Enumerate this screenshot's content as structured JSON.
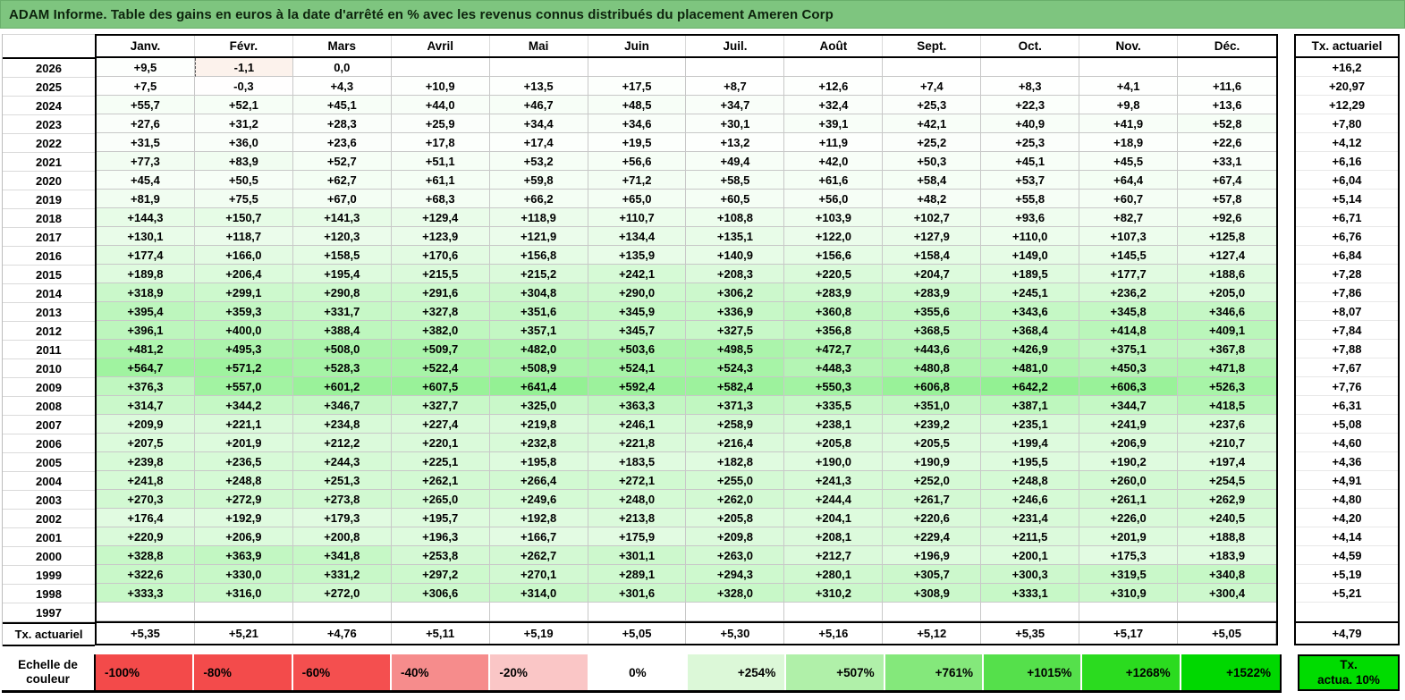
{
  "chart_data": {
    "type": "heatmap",
    "title": "ADAM Informe. Table des gains en euros à la date d'arrêté en % avec les revenus connus distribués du placement Ameren Corp",
    "columns": [
      "Janv.",
      "Févr.",
      "Mars",
      "Avril",
      "Mai",
      "Juin",
      "Juil.",
      "Août",
      "Sept.",
      "Oct.",
      "Nov.",
      "Déc."
    ],
    "right_column_label": "Tx. actuariel",
    "rows": [
      {
        "label": "2026",
        "values": [
          "+9,5",
          "-1,1",
          "0,0",
          "",
          "",
          "",
          "",
          "",
          "",
          "",
          "",
          ""
        ],
        "tx_actuariel": "+16,2"
      },
      {
        "label": "2025",
        "values": [
          "+7,5",
          "-0,3",
          "+4,3",
          "+10,9",
          "+13,5",
          "+17,5",
          "+8,7",
          "+12,6",
          "+7,4",
          "+8,3",
          "+4,1",
          "+11,6"
        ],
        "tx_actuariel": "+20,97"
      },
      {
        "label": "2024",
        "values": [
          "+55,7",
          "+52,1",
          "+45,1",
          "+44,0",
          "+46,7",
          "+48,5",
          "+34,7",
          "+32,4",
          "+25,3",
          "+22,3",
          "+9,8",
          "+13,6"
        ],
        "tx_actuariel": "+12,29"
      },
      {
        "label": "2023",
        "values": [
          "+27,6",
          "+31,2",
          "+28,3",
          "+25,9",
          "+34,4",
          "+34,6",
          "+30,1",
          "+39,1",
          "+42,1",
          "+40,9",
          "+41,9",
          "+52,8"
        ],
        "tx_actuariel": "+7,80"
      },
      {
        "label": "2022",
        "values": [
          "+31,5",
          "+36,0",
          "+23,6",
          "+17,8",
          "+17,4",
          "+19,5",
          "+13,2",
          "+11,9",
          "+25,2",
          "+25,3",
          "+18,9",
          "+22,6"
        ],
        "tx_actuariel": "+4,12"
      },
      {
        "label": "2021",
        "values": [
          "+77,3",
          "+83,9",
          "+52,7",
          "+51,1",
          "+53,2",
          "+56,6",
          "+49,4",
          "+42,0",
          "+50,3",
          "+45,1",
          "+45,5",
          "+33,1"
        ],
        "tx_actuariel": "+6,16"
      },
      {
        "label": "2020",
        "values": [
          "+45,4",
          "+50,5",
          "+62,7",
          "+61,1",
          "+59,8",
          "+71,2",
          "+58,5",
          "+61,6",
          "+58,4",
          "+53,7",
          "+64,4",
          "+67,4"
        ],
        "tx_actuariel": "+6,04"
      },
      {
        "label": "2019",
        "values": [
          "+81,9",
          "+75,5",
          "+67,0",
          "+68,3",
          "+66,2",
          "+65,0",
          "+60,5",
          "+56,0",
          "+48,2",
          "+55,8",
          "+60,7",
          "+57,8"
        ],
        "tx_actuariel": "+5,14"
      },
      {
        "label": "2018",
        "values": [
          "+144,3",
          "+150,7",
          "+141,3",
          "+129,4",
          "+118,9",
          "+110,7",
          "+108,8",
          "+103,9",
          "+102,7",
          "+93,6",
          "+82,7",
          "+92,6"
        ],
        "tx_actuariel": "+6,71"
      },
      {
        "label": "2017",
        "values": [
          "+130,1",
          "+118,7",
          "+120,3",
          "+123,9",
          "+121,9",
          "+134,4",
          "+135,1",
          "+122,0",
          "+127,9",
          "+110,0",
          "+107,3",
          "+125,8"
        ],
        "tx_actuariel": "+6,76"
      },
      {
        "label": "2016",
        "values": [
          "+177,4",
          "+166,0",
          "+158,5",
          "+170,6",
          "+156,8",
          "+135,9",
          "+140,9",
          "+156,6",
          "+158,4",
          "+149,0",
          "+145,5",
          "+127,4"
        ],
        "tx_actuariel": "+6,84"
      },
      {
        "label": "2015",
        "values": [
          "+189,8",
          "+206,4",
          "+195,4",
          "+215,5",
          "+215,2",
          "+242,1",
          "+208,3",
          "+220,5",
          "+204,7",
          "+189,5",
          "+177,7",
          "+188,6"
        ],
        "tx_actuariel": "+7,28"
      },
      {
        "label": "2014",
        "values": [
          "+318,9",
          "+299,1",
          "+290,8",
          "+291,6",
          "+304,8",
          "+290,0",
          "+306,2",
          "+283,9",
          "+283,9",
          "+245,1",
          "+236,2",
          "+205,0"
        ],
        "tx_actuariel": "+7,86"
      },
      {
        "label": "2013",
        "values": [
          "+395,4",
          "+359,3",
          "+331,7",
          "+327,8",
          "+351,6",
          "+345,9",
          "+336,9",
          "+360,8",
          "+355,6",
          "+343,6",
          "+345,8",
          "+346,6"
        ],
        "tx_actuariel": "+8,07"
      },
      {
        "label": "2012",
        "values": [
          "+396,1",
          "+400,0",
          "+388,4",
          "+382,0",
          "+357,1",
          "+345,7",
          "+327,5",
          "+356,8",
          "+368,5",
          "+368,4",
          "+414,8",
          "+409,1"
        ],
        "tx_actuariel": "+7,84"
      },
      {
        "label": "2011",
        "values": [
          "+481,2",
          "+495,3",
          "+508,0",
          "+509,7",
          "+482,0",
          "+503,6",
          "+498,5",
          "+472,7",
          "+443,6",
          "+426,9",
          "+375,1",
          "+367,8"
        ],
        "tx_actuariel": "+7,88"
      },
      {
        "label": "2010",
        "values": [
          "+564,7",
          "+571,2",
          "+528,3",
          "+522,4",
          "+508,9",
          "+524,1",
          "+524,3",
          "+448,3",
          "+480,8",
          "+481,0",
          "+450,3",
          "+471,8"
        ],
        "tx_actuariel": "+7,67"
      },
      {
        "label": "2009",
        "values": [
          "+376,3",
          "+557,0",
          "+601,2",
          "+607,5",
          "+641,4",
          "+592,4",
          "+582,4",
          "+550,3",
          "+606,8",
          "+642,2",
          "+606,3",
          "+526,3"
        ],
        "tx_actuariel": "+7,76"
      },
      {
        "label": "2008",
        "values": [
          "+314,7",
          "+344,2",
          "+346,7",
          "+327,7",
          "+325,0",
          "+363,3",
          "+371,3",
          "+335,5",
          "+351,0",
          "+387,1",
          "+344,7",
          "+418,5"
        ],
        "tx_actuariel": "+6,31"
      },
      {
        "label": "2007",
        "values": [
          "+209,9",
          "+221,1",
          "+234,8",
          "+227,4",
          "+219,8",
          "+246,1",
          "+258,9",
          "+238,1",
          "+239,2",
          "+235,1",
          "+241,9",
          "+237,6"
        ],
        "tx_actuariel": "+5,08"
      },
      {
        "label": "2006",
        "values": [
          "+207,5",
          "+201,9",
          "+212,2",
          "+220,1",
          "+232,8",
          "+221,8",
          "+216,4",
          "+205,8",
          "+205,5",
          "+199,4",
          "+206,9",
          "+210,7"
        ],
        "tx_actuariel": "+4,60"
      },
      {
        "label": "2005",
        "values": [
          "+239,8",
          "+236,5",
          "+244,3",
          "+225,1",
          "+195,8",
          "+183,5",
          "+182,8",
          "+190,0",
          "+190,9",
          "+195,5",
          "+190,2",
          "+197,4"
        ],
        "tx_actuariel": "+4,36"
      },
      {
        "label": "2004",
        "values": [
          "+241,8",
          "+248,8",
          "+251,3",
          "+262,1",
          "+266,4",
          "+272,1",
          "+255,0",
          "+241,3",
          "+252,0",
          "+248,8",
          "+260,0",
          "+254,5"
        ],
        "tx_actuariel": "+4,91"
      },
      {
        "label": "2003",
        "values": [
          "+270,3",
          "+272,9",
          "+273,8",
          "+265,0",
          "+249,6",
          "+248,0",
          "+262,0",
          "+244,4",
          "+261,7",
          "+246,6",
          "+261,1",
          "+262,9"
        ],
        "tx_actuariel": "+4,80"
      },
      {
        "label": "2002",
        "values": [
          "+176,4",
          "+192,9",
          "+179,3",
          "+195,7",
          "+192,8",
          "+213,8",
          "+205,8",
          "+204,1",
          "+220,6",
          "+231,4",
          "+226,0",
          "+240,5"
        ],
        "tx_actuariel": "+4,20"
      },
      {
        "label": "2001",
        "values": [
          "+220,9",
          "+206,9",
          "+200,8",
          "+196,3",
          "+166,7",
          "+175,9",
          "+209,8",
          "+208,1",
          "+229,4",
          "+211,5",
          "+201,9",
          "+188,8"
        ],
        "tx_actuariel": "+4,14"
      },
      {
        "label": "2000",
        "values": [
          "+328,8",
          "+363,9",
          "+341,8",
          "+253,8",
          "+262,7",
          "+301,1",
          "+263,0",
          "+212,7",
          "+196,9",
          "+200,1",
          "+175,3",
          "+183,9"
        ],
        "tx_actuariel": "+4,59"
      },
      {
        "label": "1999",
        "values": [
          "+322,6",
          "+330,0",
          "+331,2",
          "+297,2",
          "+270,1",
          "+289,1",
          "+294,3",
          "+280,1",
          "+305,7",
          "+300,3",
          "+319,5",
          "+340,8"
        ],
        "tx_actuariel": "+5,19"
      },
      {
        "label": "1998",
        "values": [
          "+333,3",
          "+316,0",
          "+272,0",
          "+306,6",
          "+314,0",
          "+301,6",
          "+328,0",
          "+310,2",
          "+308,9",
          "+333,1",
          "+310,9",
          "+300,4"
        ],
        "tx_actuariel": "+5,21"
      },
      {
        "label": "1997",
        "values": [
          "",
          "",
          "",
          "",
          "",
          "",
          "",
          "",
          "",
          "",
          "",
          ""
        ],
        "tx_actuariel": ""
      }
    ],
    "footer": {
      "label": "Tx. actuariel",
      "values": [
        "+5,35",
        "+5,21",
        "+4,76",
        "+5,11",
        "+5,19",
        "+5,05",
        "+5,30",
        "+5,16",
        "+5,12",
        "+5,35",
        "+5,17",
        "+5,05"
      ],
      "tx_actuariel": "+4,79"
    },
    "color_scale": {
      "label_lines": [
        "Echelle de",
        "couleur"
      ],
      "stops": [
        {
          "label": "-100%",
          "color": "#F34A4A",
          "align": "left"
        },
        {
          "label": "-80%",
          "color": "#F34B4B",
          "align": "left"
        },
        {
          "label": "-60%",
          "color": "#F44F4F",
          "align": "left"
        },
        {
          "label": "-40%",
          "color": "#F68C8C",
          "align": "left"
        },
        {
          "label": "-20%",
          "color": "#FAC6C6",
          "align": "left"
        },
        {
          "label": "0%",
          "color": "#FFFFFF",
          "align": "center"
        },
        {
          "label": "+254%",
          "color": "#DCF8D8",
          "align": "right"
        },
        {
          "label": "+507%",
          "color": "#B0F0A9",
          "align": "right"
        },
        {
          "label": "+761%",
          "color": "#84E87B",
          "align": "right"
        },
        {
          "label": "+1015%",
          "color": "#55E04B",
          "align": "right"
        },
        {
          "label": "+1268%",
          "color": "#2BDB1F",
          "align": "right"
        },
        {
          "label": "+1522%",
          "color": "#00D800",
          "align": "right"
        }
      ],
      "right_cell": {
        "lines": [
          "Tx.",
          "actua. 10%"
        ],
        "color": "#00DC00"
      }
    },
    "scale": {
      "positive_limit": 1522,
      "negative_limit": 100
    },
    "colors": {
      "title_bg": "#7EC57F",
      "title_text": "#0D230D",
      "positive_max": "#00DE00",
      "negative_max": "#F04747",
      "neutral": "#FFFFFF",
      "page_break_bg": "#FCF2EC"
    },
    "page_break_cell": {
      "row_label": "2026",
      "column_index": 1
    }
  }
}
